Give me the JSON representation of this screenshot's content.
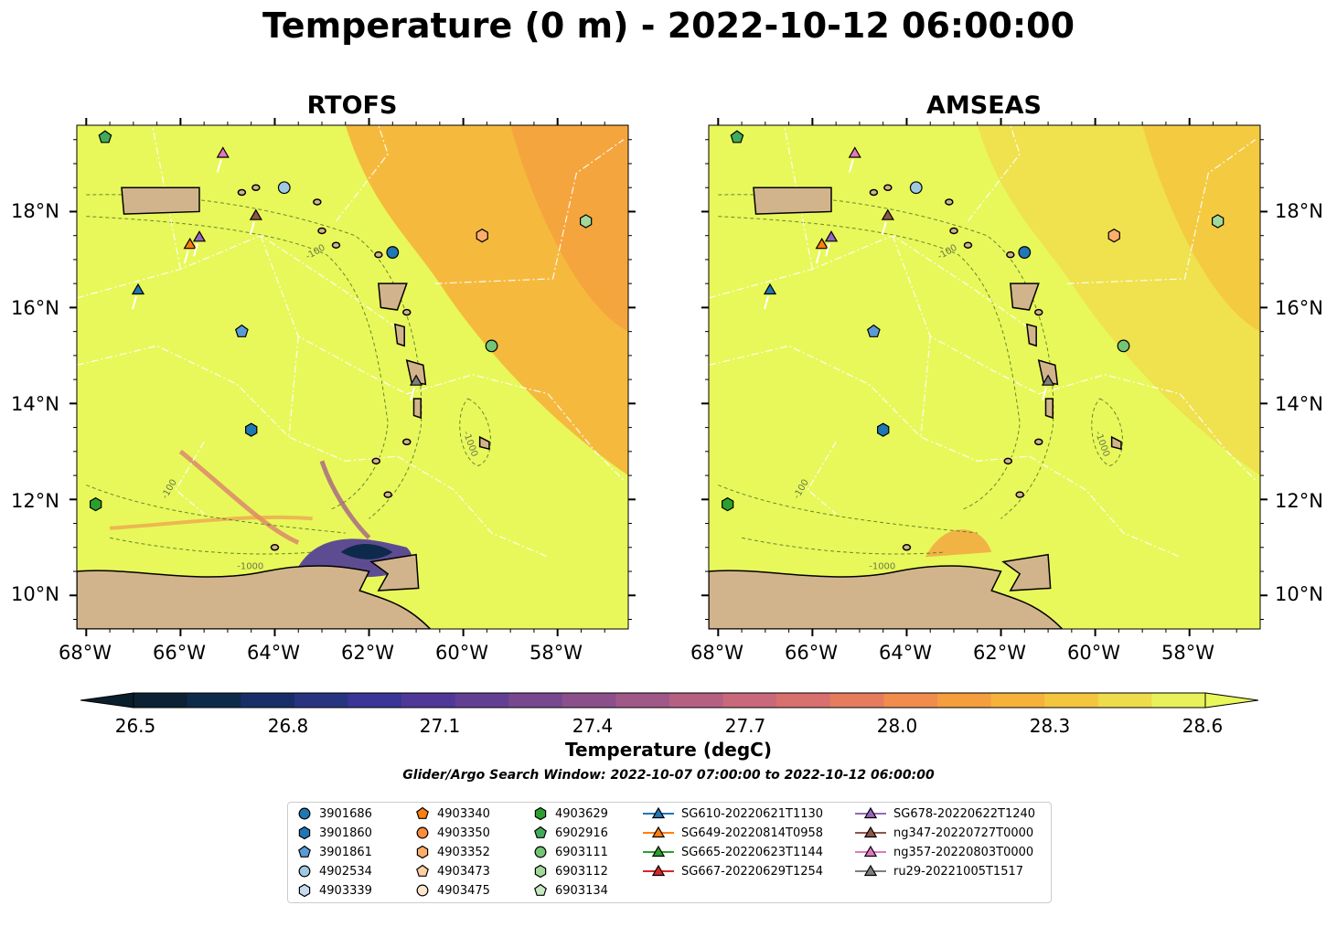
{
  "title": "Temperature (0 m) - 2022-10-12 06:00:00",
  "panels": [
    {
      "title": "RTOFS"
    },
    {
      "title": "AMSEAS"
    }
  ],
  "lon_labels": [
    "68°W",
    "66°W",
    "64°W",
    "62°W",
    "60°W",
    "58°W"
  ],
  "lat_labels": [
    "18°N",
    "16°N",
    "14°N",
    "12°N",
    "10°N"
  ],
  "contour_labels": [
    "-100",
    "-1000"
  ],
  "colorbar": {
    "label": "Temperature (degC)",
    "ticks": [
      "26.5",
      "26.8",
      "27.1",
      "27.4",
      "27.7",
      "28.0",
      "28.3",
      "28.6"
    ],
    "colors": [
      "#0c2234",
      "#0e2a4a",
      "#182e68",
      "#283480",
      "#3a3596",
      "#4f3898",
      "#633f94",
      "#774790",
      "#8b508c",
      "#a05888",
      "#b56082",
      "#c8687a",
      "#d8706e",
      "#e67c5e",
      "#f08c4c",
      "#f49e3e",
      "#f6b23a",
      "#f4c63e",
      "#eedc4a",
      "#e8f05a"
    ],
    "under_color": "#0a1e2c",
    "over_color": "#e8f85a"
  },
  "search_window": "Glider/Argo Search Window: 2022-10-07 07:00:00 to 2022-10-12 06:00:00",
  "legend": [
    {
      "label": "3901686",
      "marker": "circle",
      "color": "#1f77b4"
    },
    {
      "label": "3901860",
      "marker": "hexagon",
      "color": "#1f77b4"
    },
    {
      "label": "3901861",
      "marker": "pentagon",
      "color": "#5b9bd5"
    },
    {
      "label": "4902534",
      "marker": "circle",
      "color": "#9ecae1"
    },
    {
      "label": "4903339",
      "marker": "hexagon",
      "color": "#c6dbef"
    },
    {
      "label": "4903340",
      "marker": "pentagon",
      "color": "#ff7f0e"
    },
    {
      "label": "4903350",
      "marker": "circle",
      "color": "#fd8d3c"
    },
    {
      "label": "4903352",
      "marker": "hexagon",
      "color": "#fdae6b"
    },
    {
      "label": "4903473",
      "marker": "pentagon",
      "color": "#fdd0a2"
    },
    {
      "label": "4903475",
      "marker": "circle",
      "color": "#fee6ce"
    },
    {
      "label": "4903629",
      "marker": "hexagon",
      "color": "#2ca02c"
    },
    {
      "label": "6902916",
      "marker": "pentagon",
      "color": "#41ab5d"
    },
    {
      "label": "6903111",
      "marker": "circle",
      "color": "#74c476"
    },
    {
      "label": "6903112",
      "marker": "hexagon",
      "color": "#a1d99b"
    },
    {
      "label": "6903134",
      "marker": "pentagon",
      "color": "#c7e9c0"
    },
    {
      "label": "SG610-20220621T1130",
      "marker": "triangle",
      "color": "#1f77b4"
    },
    {
      "label": "SG649-20220814T0958",
      "marker": "triangle",
      "color": "#ff7f0e"
    },
    {
      "label": "SG665-20220623T1144",
      "marker": "triangle",
      "color": "#2ca02c"
    },
    {
      "label": "SG667-20220629T1254",
      "marker": "triangle",
      "color": "#d62728"
    },
    {
      "label": "SG678-20220622T1240",
      "marker": "triangle",
      "color": "#9467bd"
    },
    {
      "label": "ng347-20220727T0000",
      "marker": "triangle",
      "color": "#8c564b"
    },
    {
      "label": "ng357-20220803T0000",
      "marker": "triangle",
      "color": "#e377c2"
    },
    {
      "label": "ru29-20221005T1517",
      "marker": "triangle",
      "color": "#7f7f7f"
    }
  ],
  "observations": [
    {
      "id": "3901686",
      "lon": -61.5,
      "lat": 17.15
    },
    {
      "id": "3901860",
      "lon": -64.5,
      "lat": 13.45
    },
    {
      "id": "3901861",
      "lon": -64.7,
      "lat": 15.5
    },
    {
      "id": "4902534",
      "lon": -63.8,
      "lat": 18.5
    },
    {
      "id": "4903352",
      "lon": -59.6,
      "lat": 17.5
    },
    {
      "id": "4903629",
      "lon": -67.8,
      "lat": 11.9
    },
    {
      "id": "6902916",
      "lon": -67.6,
      "lat": 19.55
    },
    {
      "id": "6903111",
      "lon": -59.4,
      "lat": 15.2
    },
    {
      "id": "6903112",
      "lon": -57.4,
      "lat": 17.8
    },
    {
      "id": "SG610-20220621T1130",
      "lon": -66.9,
      "lat": 16.35
    },
    {
      "id": "SG649-20220814T0958",
      "lon": -65.8,
      "lat": 17.3
    },
    {
      "id": "SG678-20220622T1240",
      "lon": -65.6,
      "lat": 17.45
    },
    {
      "id": "ng347-20220727T0000",
      "lon": -64.4,
      "lat": 17.9
    },
    {
      "id": "ng357-20220803T0000",
      "lon": -65.1,
      "lat": 19.2
    },
    {
      "id": "ru29-20221005T1517",
      "lon": -61.0,
      "lat": 14.45
    }
  ]
}
